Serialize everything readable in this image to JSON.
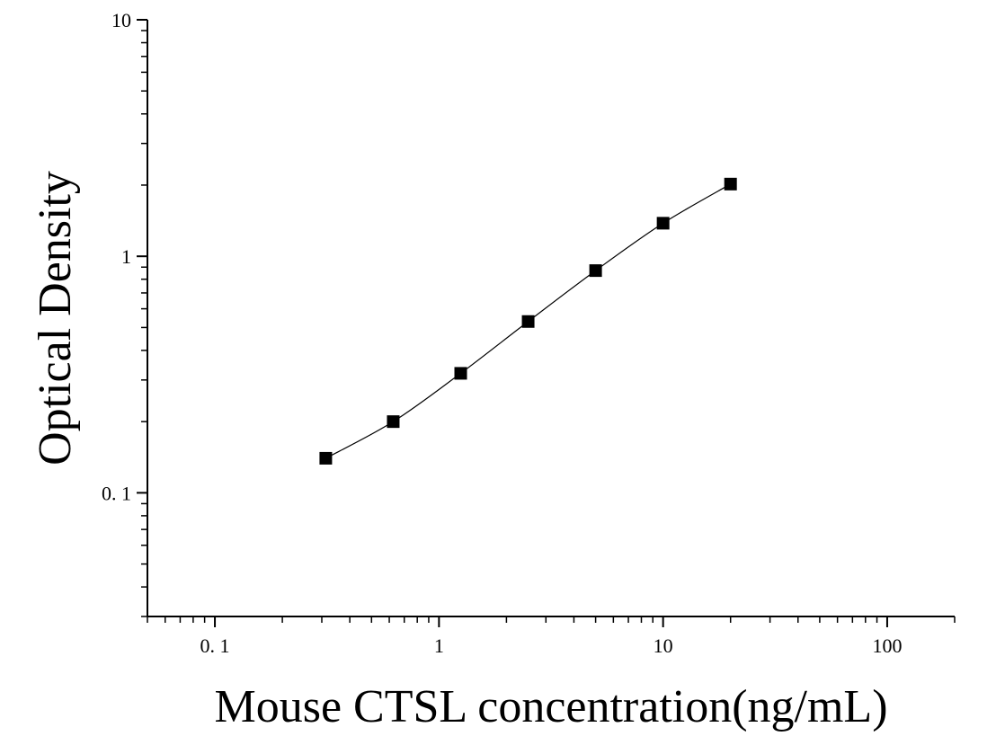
{
  "chart_data": {
    "type": "scatter",
    "title": "",
    "xlabel": "Mouse CTSL concentration(ng/mL)",
    "ylabel": "Optical Density",
    "xscale": "log",
    "yscale": "log",
    "xlim": [
      0.05,
      200
    ],
    "ylim": [
      0.03,
      10
    ],
    "x_ticks": [
      {
        "value": 0.1,
        "label": "0. 1"
      },
      {
        "value": 1,
        "label": "1"
      },
      {
        "value": 10,
        "label": "10"
      },
      {
        "value": 100,
        "label": "100"
      }
    ],
    "y_ticks": [
      {
        "value": 0.1,
        "label": "0. 1"
      },
      {
        "value": 1,
        "label": "1"
      },
      {
        "value": 10,
        "label": "10"
      }
    ],
    "grid": false,
    "legend": "none",
    "marker": "square",
    "color": "#000000",
    "fit_curve": true,
    "series": [
      {
        "x": [
          0.3125,
          0.625,
          1.25,
          2.5,
          5,
          10,
          20
        ],
        "y": [
          0.14,
          0.2,
          0.32,
          0.53,
          0.87,
          1.38,
          2.02
        ]
      }
    ]
  }
}
